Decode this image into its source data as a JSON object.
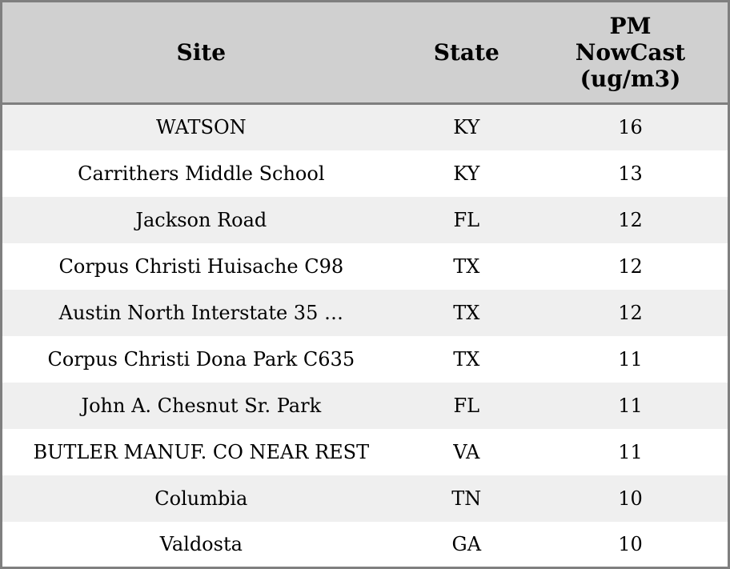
{
  "chart_data": {
    "type": "table",
    "columns": [
      {
        "key": "site",
        "label": "Site"
      },
      {
        "key": "state",
        "label": "State"
      },
      {
        "key": "pm_nowcast",
        "label": "PM NowCast (ug/m3)",
        "label_lines": [
          "PM",
          "NowCast",
          "(ug/m3)"
        ]
      }
    ],
    "rows": [
      {
        "site": "WATSON",
        "state": "KY",
        "pm_nowcast": 16
      },
      {
        "site": "Carrithers Middle School",
        "state": "KY",
        "pm_nowcast": 13
      },
      {
        "site": "Jackson Road",
        "state": "FL",
        "pm_nowcast": 12
      },
      {
        "site": "Corpus Christi Huisache C98",
        "state": "TX",
        "pm_nowcast": 12
      },
      {
        "site": "Austin North Interstate 35 …",
        "state": "TX",
        "pm_nowcast": 12
      },
      {
        "site": "Corpus Christi Dona Park C635",
        "state": "TX",
        "pm_nowcast": 11
      },
      {
        "site": "John A. Chesnut Sr. Park",
        "state": "FL",
        "pm_nowcast": 11
      },
      {
        "site": "BUTLER MANUF. CO NEAR REST",
        "state": "VA",
        "pm_nowcast": 11
      },
      {
        "site": "Columbia",
        "state": "TN",
        "pm_nowcast": 10
      },
      {
        "site": "Valdosta",
        "state": "GA",
        "pm_nowcast": 10
      }
    ]
  },
  "colors": {
    "header_bg": "#d0d0d0",
    "row_stripe": "#efefef",
    "row_plain": "#ffffff",
    "border": "#7f7f7f",
    "text": "#000000"
  }
}
